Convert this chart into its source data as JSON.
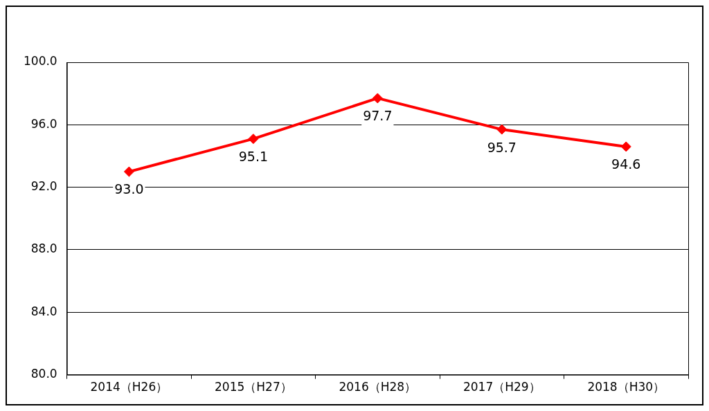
{
  "chart_data": {
    "type": "line",
    "categories": [
      "2014（H26）",
      "2015（H27）",
      "2016（H28）",
      "2017（H29）",
      "2018（H30）"
    ],
    "series": [
      {
        "color": "#ff0000",
        "values": [
          93.0,
          95.1,
          97.7,
          95.7,
          94.6
        ],
        "value_labels": [
          "93.0",
          "95.1",
          "97.7",
          "95.7",
          "94.6"
        ]
      }
    ],
    "ylim": [
      80,
      100
    ],
    "yticks": [
      {
        "value": 80,
        "label": "80.0"
      },
      {
        "value": 84,
        "label": "84.0"
      },
      {
        "value": 88,
        "label": "88.0"
      },
      {
        "value": 92,
        "label": "92.0"
      },
      {
        "value": 96,
        "label": "96.0"
      },
      {
        "value": 100,
        "label": "100.0"
      }
    ],
    "grid": "y",
    "marker": "diamond",
    "line_style": "solid",
    "legend": false
  }
}
